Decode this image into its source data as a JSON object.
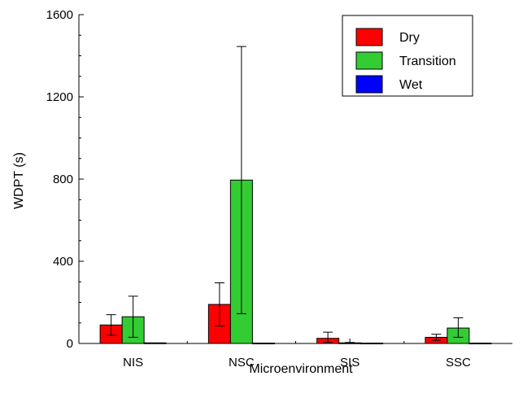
{
  "chart_data": {
    "type": "bar",
    "xlabel": "Microenvironment",
    "ylabel": "WDPT (s)",
    "ylim": [
      0,
      1600
    ],
    "yticks": [
      0,
      400,
      800,
      1200,
      1600
    ],
    "categories": [
      "NIS",
      "NSC",
      "SIS",
      "SSC"
    ],
    "series": [
      {
        "name": "Dry",
        "color": "#ff0000",
        "values": [
          90,
          190,
          25,
          30
        ],
        "error_low": [
          40,
          85,
          5,
          15
        ],
        "error_high": [
          140,
          295,
          55,
          45
        ]
      },
      {
        "name": "Transition",
        "color": "#33cc33",
        "values": [
          130,
          795,
          3,
          75
        ],
        "error_low": [
          30,
          145,
          0,
          30
        ],
        "error_high": [
          230,
          1445,
          5,
          125
        ]
      },
      {
        "name": "Wet",
        "color": "#0000ff",
        "values": [
          3,
          2,
          2,
          2
        ],
        "error_low": [
          3,
          2,
          2,
          2
        ],
        "error_high": [
          3,
          2,
          2,
          2
        ]
      }
    ],
    "legend_position": "top-right",
    "grid": false
  }
}
